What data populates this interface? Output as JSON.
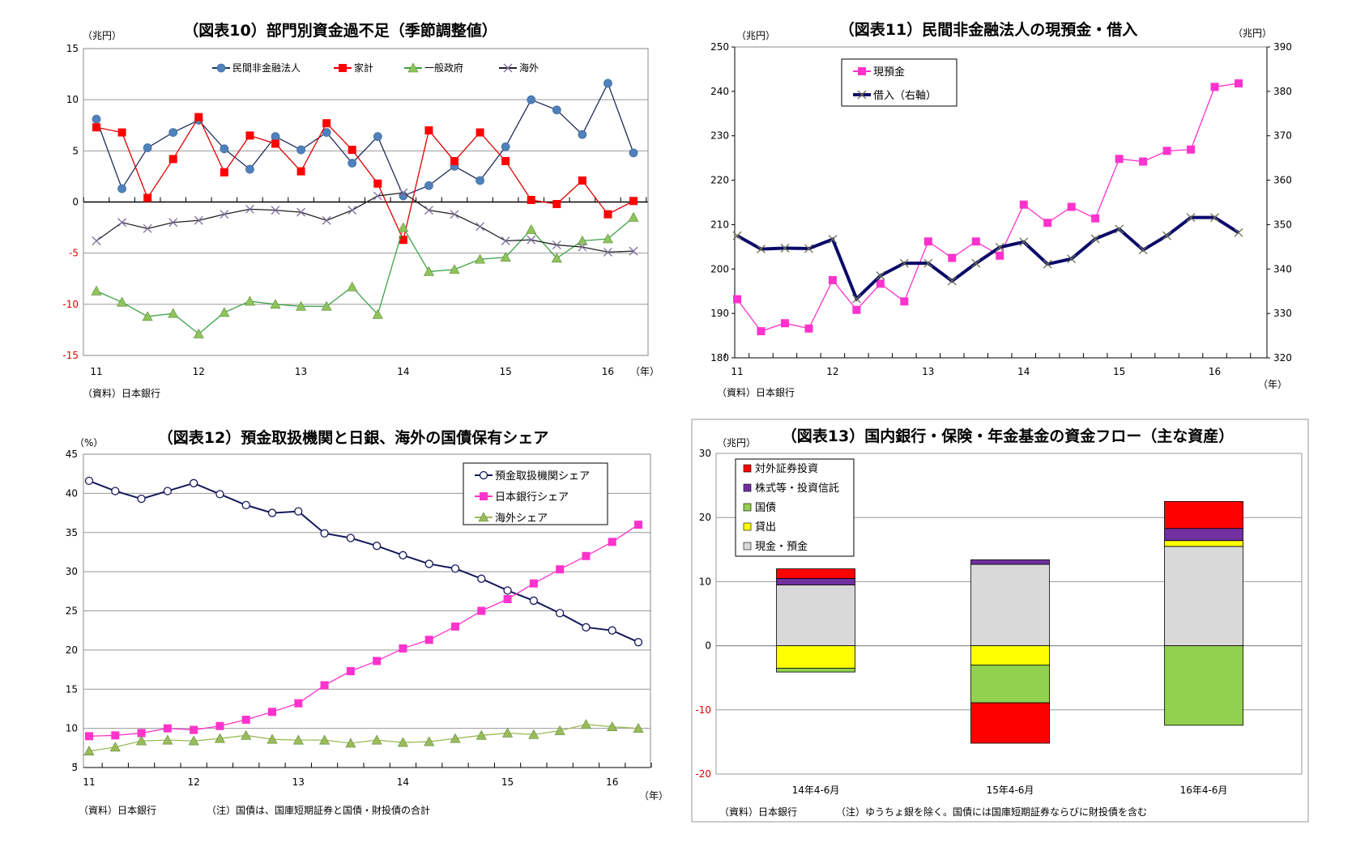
{
  "chart_data": [
    {
      "type": "line",
      "title": "（図表10）部門別資金過不足（季節調整値）",
      "unit_label": "（兆円）",
      "x_unit_label": "（年）",
      "source": "（資料）日本銀行",
      "xtick_labels": [
        "11",
        "12",
        "13",
        "14",
        "15",
        "16"
      ],
      "ylim": [
        -15,
        15
      ],
      "yticks": [
        15,
        10,
        5,
        0,
        -5,
        -10,
        -15
      ],
      "negative_tick_color": "#e00000",
      "grid": true,
      "legend_placement": "top-center",
      "series": [
        {
          "name": "民間非金融法人",
          "color": "#1f2d5a",
          "marker": "circle",
          "marker_color": "#4f81bd",
          "values": [
            8.1,
            1.3,
            5.3,
            6.8,
            8.0,
            5.2,
            3.2,
            6.4,
            5.1,
            6.8,
            3.8,
            6.4,
            0.6,
            1.6,
            3.5,
            2.1,
            5.4,
            10.0,
            9.0,
            6.6,
            11.6,
            4.8
          ]
        },
        {
          "name": "家計",
          "color": "#e00000",
          "marker": "square",
          "marker_color": "#ff0000",
          "values": [
            7.3,
            6.8,
            0.4,
            4.2,
            8.3,
            2.9,
            6.5,
            5.7,
            3.0,
            7.7,
            5.1,
            1.8,
            -3.7,
            7.0,
            4.0,
            6.8,
            4.0,
            0.2,
            -0.2,
            2.1,
            -1.2,
            0.1
          ]
        },
        {
          "name": "一般政府",
          "color": "#3ca345",
          "marker": "triangle",
          "marker_color": "#8fc45a",
          "values": [
            -8.7,
            -9.8,
            -11.2,
            -10.9,
            -12.9,
            -10.8,
            -9.7,
            -10.0,
            -10.2,
            -10.2,
            -8.3,
            -11.0,
            -2.5,
            -6.8,
            -6.6,
            -5.6,
            -5.4,
            -2.7,
            -5.5,
            -3.8,
            -3.6,
            -1.5
          ]
        },
        {
          "name": "海外",
          "color": "#222222",
          "marker": "x",
          "marker_color": "#7f6f9f",
          "values": [
            -3.8,
            -2.0,
            -2.6,
            -2.0,
            -1.8,
            -1.2,
            -0.7,
            -0.8,
            -1.0,
            -1.8,
            -0.8,
            0.6,
            0.9,
            -0.8,
            -1.2,
            -2.4,
            -3.8,
            -3.7,
            -4.2,
            -4.4,
            -4.9,
            -4.8
          ]
        }
      ]
    },
    {
      "type": "line",
      "title": "（図表11）民間非金融法人の現預金・借入",
      "unit_label": "（兆円）",
      "unit_label_right": "（兆円）",
      "x_unit_label": "（年）",
      "source": "（資料）日本銀行",
      "xtick_labels": [
        "11",
        "12",
        "13",
        "14",
        "15",
        "16"
      ],
      "ylim": [
        180,
        250
      ],
      "yticks": [
        250,
        240,
        230,
        220,
        210,
        200,
        190,
        180
      ],
      "ylim_right": [
        320,
        390
      ],
      "yticks_right": [
        390,
        380,
        370,
        360,
        350,
        340,
        330,
        320
      ],
      "grid": false,
      "legend_placement": "top-left",
      "series": [
        {
          "name": "現預金",
          "axis": "left",
          "color": "#ff33cc",
          "marker": "square",
          "marker_color": "#ff33cc",
          "values": [
            193.2,
            186.0,
            187.8,
            186.6,
            197.5,
            190.8,
            196.7,
            192.7,
            206.2,
            202.5,
            206.2,
            203.0,
            214.5,
            210.4,
            214.0,
            211.4,
            224.8,
            224.2,
            226.6,
            226.9,
            241.0,
            241.8
          ]
        },
        {
          "name": "借入（右軸）",
          "axis": "right",
          "color": "#0a0a6a",
          "marker": "x",
          "marker_color": "#6b7050",
          "values": [
            347.5,
            344.5,
            344.7,
            344.6,
            346.7,
            333.3,
            338.5,
            341.3,
            341.3,
            337.3,
            341.3,
            344.9,
            346.1,
            341.1,
            342.3,
            346.8,
            349.0,
            344.3,
            347.5,
            351.6,
            351.6,
            348.2
          ]
        }
      ]
    },
    {
      "type": "line",
      "title": "（図表12）預金取扱機関と日銀、海外の国債保有シェア",
      "unit_label": "（%）",
      "x_unit_label": "（年）",
      "source": "（資料）日本銀行",
      "note": "（注）国債は、国庫短期証券と国債・財投債の合計",
      "xtick_labels": [
        "11",
        "12",
        "13",
        "14",
        "15",
        "16"
      ],
      "ylim": [
        5,
        45
      ],
      "yticks": [
        45,
        40,
        35,
        30,
        25,
        20,
        15,
        10,
        5
      ],
      "grid": true,
      "legend_placement": "top-right",
      "series": [
        {
          "name": "預金取扱機関シェア",
          "color": "#14195a",
          "marker": "open-circle",
          "marker_color": "#ffffff",
          "values": [
            41.6,
            40.3,
            39.3,
            40.3,
            41.3,
            39.9,
            38.5,
            37.5,
            37.7,
            34.9,
            34.3,
            33.3,
            32.1,
            31.0,
            30.4,
            29.1,
            27.6,
            26.3,
            24.7,
            22.9,
            22.5,
            21.0
          ]
        },
        {
          "name": "日本銀行シェア",
          "color": "#ff33cc",
          "marker": "square",
          "marker_color": "#ff33cc",
          "values": [
            9.0,
            9.1,
            9.4,
            10.0,
            9.8,
            10.3,
            11.1,
            12.1,
            13.2,
            15.5,
            17.3,
            18.6,
            20.2,
            21.3,
            23.0,
            25.0,
            26.5,
            28.5,
            30.3,
            32.0,
            33.8,
            36.0
          ]
        },
        {
          "name": "海外シェア",
          "color": "#9bbb59",
          "marker": "triangle",
          "marker_color": "#9bbb59",
          "values": [
            7.1,
            7.6,
            8.4,
            8.5,
            8.4,
            8.7,
            9.1,
            8.6,
            8.5,
            8.5,
            8.1,
            8.5,
            8.2,
            8.3,
            8.7,
            9.1,
            9.4,
            9.2,
            9.7,
            10.5,
            10.2,
            10.0
          ]
        }
      ]
    },
    {
      "type": "bar",
      "stacked": true,
      "title": "（図表13）国内銀行・保険・年金基金の資金フロー（主な資産）",
      "unit_label": "（兆円）",
      "source": "（資料）日本銀行",
      "note": "（注）ゆうちょ銀を除く。国債には国庫短期証券ならびに財投債を含む",
      "categories": [
        "14年4-6月",
        "15年4-6月",
        "16年4-6月"
      ],
      "ylim": [
        -20,
        30
      ],
      "yticks": [
        30,
        20,
        10,
        0,
        -10,
        -20
      ],
      "negative_tick_color": "#e00000",
      "grid": true,
      "legend_placement": "top-left",
      "legend_order": [
        "対外証券投資",
        "株式等・投資信託",
        "国債",
        "貸出",
        "現金・預金"
      ],
      "series": [
        {
          "name": "現金・預金",
          "color": "#d9d9d9",
          "values": [
            9.5,
            12.7,
            15.5
          ]
        },
        {
          "name": "貸出",
          "color": "#ffff00",
          "values": [
            -3.5,
            -3.0,
            0.9
          ]
        },
        {
          "name": "国債",
          "color": "#92d050",
          "values": [
            -0.6,
            -5.9,
            -12.4
          ]
        },
        {
          "name": "株式等・投資信託",
          "color": "#7030a0",
          "values": [
            1.0,
            0.7,
            1.9
          ]
        },
        {
          "name": "対外証券投資",
          "color": "#ff0000",
          "values": [
            1.5,
            -6.3,
            4.2
          ]
        }
      ]
    }
  ]
}
